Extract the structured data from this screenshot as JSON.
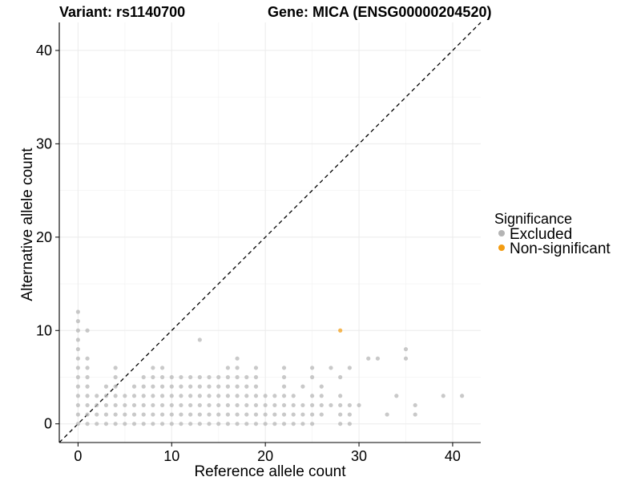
{
  "chart_data": {
    "type": "scatter",
    "title_left": "Variant: rs1140700",
    "title_right": "Gene: MICA (ENSG00000204520)",
    "xlabel": "Reference allele count",
    "ylabel": "Alternative allele count",
    "xlim": [
      -2,
      43
    ],
    "ylim": [
      -2,
      43
    ],
    "xticks": [
      0,
      10,
      20,
      30,
      40
    ],
    "yticks": [
      0,
      10,
      20,
      30,
      40
    ],
    "grid": true,
    "reference_line": {
      "type": "diagonal",
      "slope": 1,
      "intercept": 0,
      "style": "dashed"
    },
    "legend": {
      "title": "Significance",
      "position": "right",
      "entries": [
        {
          "label": "Excluded",
          "color": "#b4b4b4"
        },
        {
          "label": "Non-significant",
          "color": "#f39c12"
        }
      ]
    },
    "series": [
      {
        "name": "Excluded",
        "color": "#b4b4b4",
        "points": [
          [
            0,
            0
          ],
          [
            0,
            1
          ],
          [
            0,
            2
          ],
          [
            0,
            3
          ],
          [
            0,
            4
          ],
          [
            0,
            5
          ],
          [
            0,
            6
          ],
          [
            0,
            7
          ],
          [
            0,
            8
          ],
          [
            0,
            9
          ],
          [
            0,
            10
          ],
          [
            0,
            11
          ],
          [
            0,
            12
          ],
          [
            1,
            0
          ],
          [
            1,
            1
          ],
          [
            1,
            2
          ],
          [
            1,
            3
          ],
          [
            1,
            4
          ],
          [
            1,
            5
          ],
          [
            1,
            6
          ],
          [
            1,
            7
          ],
          [
            1,
            10
          ],
          [
            2,
            0
          ],
          [
            2,
            1
          ],
          [
            2,
            2
          ],
          [
            2,
            3
          ],
          [
            3,
            0
          ],
          [
            3,
            1
          ],
          [
            3,
            2
          ],
          [
            3,
            3
          ],
          [
            3,
            4
          ],
          [
            4,
            0
          ],
          [
            4,
            1
          ],
          [
            4,
            2
          ],
          [
            4,
            3
          ],
          [
            4,
            4
          ],
          [
            4,
            5
          ],
          [
            4,
            6
          ],
          [
            5,
            0
          ],
          [
            5,
            1
          ],
          [
            5,
            2
          ],
          [
            5,
            3
          ],
          [
            6,
            0
          ],
          [
            6,
            1
          ],
          [
            6,
            2
          ],
          [
            6,
            3
          ],
          [
            6,
            4
          ],
          [
            7,
            0
          ],
          [
            7,
            1
          ],
          [
            7,
            2
          ],
          [
            7,
            3
          ],
          [
            7,
            4
          ],
          [
            7,
            5
          ],
          [
            8,
            0
          ],
          [
            8,
            1
          ],
          [
            8,
            2
          ],
          [
            8,
            3
          ],
          [
            8,
            4
          ],
          [
            8,
            5
          ],
          [
            8,
            6
          ],
          [
            9,
            0
          ],
          [
            9,
            1
          ],
          [
            9,
            2
          ],
          [
            9,
            3
          ],
          [
            9,
            4
          ],
          [
            9,
            5
          ],
          [
            9,
            6
          ],
          [
            10,
            0
          ],
          [
            10,
            1
          ],
          [
            10,
            2
          ],
          [
            10,
            3
          ],
          [
            10,
            4
          ],
          [
            10,
            5
          ],
          [
            11,
            0
          ],
          [
            11,
            1
          ],
          [
            11,
            2
          ],
          [
            11,
            3
          ],
          [
            11,
            4
          ],
          [
            11,
            5
          ],
          [
            12,
            0
          ],
          [
            12,
            1
          ],
          [
            12,
            2
          ],
          [
            12,
            3
          ],
          [
            12,
            4
          ],
          [
            12,
            5
          ],
          [
            13,
            0
          ],
          [
            13,
            1
          ],
          [
            13,
            2
          ],
          [
            13,
            3
          ],
          [
            13,
            4
          ],
          [
            13,
            5
          ],
          [
            13,
            9
          ],
          [
            14,
            0
          ],
          [
            14,
            1
          ],
          [
            14,
            2
          ],
          [
            14,
            3
          ],
          [
            14,
            4
          ],
          [
            14,
            5
          ],
          [
            15,
            0
          ],
          [
            15,
            1
          ],
          [
            15,
            2
          ],
          [
            15,
            3
          ],
          [
            15,
            4
          ],
          [
            15,
            5
          ],
          [
            16,
            0
          ],
          [
            16,
            1
          ],
          [
            16,
            2
          ],
          [
            16,
            3
          ],
          [
            16,
            4
          ],
          [
            16,
            5
          ],
          [
            16,
            6
          ],
          [
            17,
            0
          ],
          [
            17,
            1
          ],
          [
            17,
            2
          ],
          [
            17,
            3
          ],
          [
            17,
            4
          ],
          [
            17,
            5
          ],
          [
            17,
            6
          ],
          [
            17,
            7
          ],
          [
            18,
            0
          ],
          [
            18,
            1
          ],
          [
            18,
            2
          ],
          [
            18,
            3
          ],
          [
            18,
            4
          ],
          [
            18,
            5
          ],
          [
            19,
            0
          ],
          [
            19,
            1
          ],
          [
            19,
            2
          ],
          [
            19,
            3
          ],
          [
            19,
            4
          ],
          [
            19,
            5
          ],
          [
            19,
            6
          ],
          [
            20,
            0
          ],
          [
            20,
            1
          ],
          [
            20,
            2
          ],
          [
            20,
            3
          ],
          [
            21,
            0
          ],
          [
            21,
            1
          ],
          [
            21,
            2
          ],
          [
            21,
            3
          ],
          [
            22,
            0
          ],
          [
            22,
            1
          ],
          [
            22,
            2
          ],
          [
            22,
            3
          ],
          [
            22,
            4
          ],
          [
            22,
            5
          ],
          [
            22,
            6
          ],
          [
            23,
            0
          ],
          [
            23,
            1
          ],
          [
            23,
            2
          ],
          [
            23,
            3
          ],
          [
            24,
            0
          ],
          [
            24,
            1
          ],
          [
            24,
            2
          ],
          [
            24,
            4
          ],
          [
            25,
            0
          ],
          [
            25,
            1
          ],
          [
            25,
            2
          ],
          [
            25,
            3
          ],
          [
            25,
            5
          ],
          [
            25,
            6
          ],
          [
            26,
            1
          ],
          [
            26,
            2
          ],
          [
            26,
            3
          ],
          [
            26,
            4
          ],
          [
            27,
            2
          ],
          [
            27,
            6
          ],
          [
            28,
            0
          ],
          [
            28,
            1
          ],
          [
            28,
            2
          ],
          [
            28,
            3
          ],
          [
            28,
            5
          ],
          [
            29,
            0
          ],
          [
            29,
            1
          ],
          [
            29,
            2
          ],
          [
            29,
            6
          ],
          [
            30,
            2
          ],
          [
            31,
            7
          ],
          [
            32,
            7
          ],
          [
            33,
            1
          ],
          [
            34,
            3
          ],
          [
            35,
            7
          ],
          [
            35,
            8
          ],
          [
            36,
            1
          ],
          [
            36,
            2
          ],
          [
            39,
            3
          ],
          [
            41,
            3
          ]
        ]
      },
      {
        "name": "Non-significant",
        "color": "#f39c12",
        "points": [
          [
            28,
            10
          ]
        ]
      }
    ]
  }
}
